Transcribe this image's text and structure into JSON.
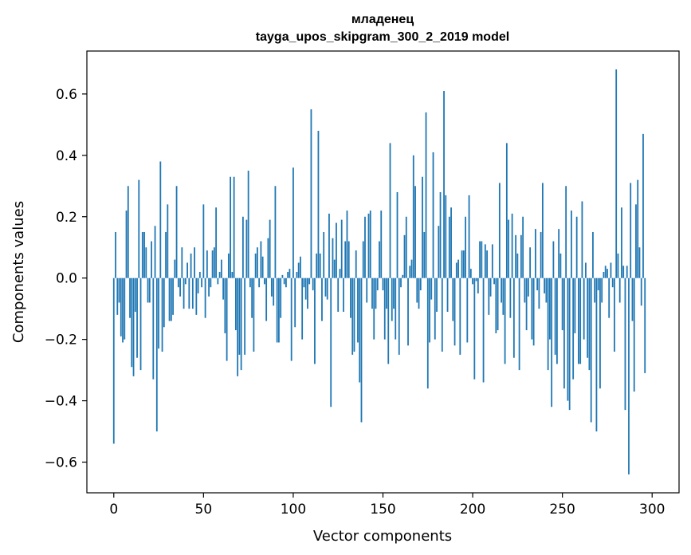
{
  "chart_data": {
    "type": "bar",
    "title": "младенец",
    "subtitle": "tayga_upos_skipgram_300_2_2019 model",
    "xlabel": "Vector components",
    "ylabel": "Components values",
    "xlim": [
      -15,
      315
    ],
    "ylim": [
      -0.7,
      0.74
    ],
    "xticks": [
      0,
      50,
      100,
      150,
      200,
      250,
      300
    ],
    "yticks": [
      -0.6,
      -0.4,
      -0.2,
      0.0,
      0.2,
      0.4,
      0.6
    ],
    "ytick_labels": [
      "−0.6",
      "−0.4",
      "−0.2",
      "0.0",
      "0.2",
      "0.4",
      "0.6"
    ],
    "xtick_labels": [
      "0",
      "50",
      "100",
      "150",
      "200",
      "250",
      "300"
    ],
    "bar_color": "#1f77b4",
    "values": [
      -0.54,
      0.15,
      -0.12,
      -0.08,
      -0.19,
      -0.21,
      -0.2,
      0.22,
      0.3,
      -0.13,
      -0.29,
      -0.32,
      -0.11,
      -0.26,
      0.32,
      -0.3,
      0.15,
      0.15,
      0.1,
      -0.08,
      -0.08,
      0.12,
      -0.33,
      0.17,
      -0.5,
      -0.23,
      0.38,
      -0.24,
      -0.16,
      0.15,
      0.24,
      -0.14,
      -0.14,
      -0.12,
      0.06,
      0.3,
      -0.03,
      -0.06,
      0.1,
      -0.1,
      -0.02,
      0.05,
      -0.1,
      0.08,
      -0.1,
      0.1,
      -0.12,
      -0.05,
      0.02,
      -0.03,
      0.24,
      -0.13,
      0.09,
      -0.06,
      -0.03,
      0.09,
      0.1,
      0.23,
      -0.02,
      0.02,
      0.06,
      -0.07,
      -0.18,
      -0.27,
      0.08,
      0.33,
      0.02,
      0.33,
      -0.17,
      -0.32,
      -0.25,
      -0.3,
      0.2,
      -0.25,
      0.19,
      0.35,
      -0.03,
      -0.13,
      -0.24,
      0.08,
      0.1,
      -0.03,
      0.12,
      0.07,
      -0.02,
      -0.14,
      0.13,
      0.19,
      -0.06,
      -0.09,
      0.3,
      -0.21,
      -0.21,
      -0.13,
      0.01,
      -0.02,
      -0.03,
      0.02,
      0.03,
      -0.27,
      0.36,
      -0.16,
      0.02,
      0.05,
      0.07,
      -0.2,
      -0.03,
      -0.07,
      -0.1,
      -0.02,
      0.55,
      -0.04,
      -0.28,
      0.08,
      0.48,
      0.08,
      -0.14,
      0.15,
      -0.06,
      -0.07,
      0.21,
      -0.42,
      0.13,
      0.06,
      0.18,
      -0.11,
      0.03,
      0.19,
      -0.11,
      0.12,
      0.22,
      0.12,
      -0.13,
      -0.25,
      -0.24,
      0.09,
      -0.21,
      -0.34,
      -0.47,
      0.12,
      0.2,
      -0.08,
      0.21,
      0.22,
      -0.1,
      -0.2,
      -0.1,
      -0.04,
      0.12,
      0.22,
      -0.04,
      -0.2,
      -0.1,
      -0.28,
      0.44,
      -0.14,
      -0.1,
      -0.2,
      0.28,
      -0.25,
      -0.03,
      0.01,
      0.14,
      0.2,
      -0.22,
      0.04,
      0.06,
      0.4,
      0.3,
      -0.08,
      -0.1,
      -0.04,
      0.33,
      0.15,
      0.54,
      -0.36,
      -0.21,
      -0.07,
      0.41,
      -0.2,
      -0.11,
      0.17,
      0.28,
      -0.24,
      0.61,
      0.27,
      -0.11,
      0.2,
      0.23,
      -0.14,
      -0.22,
      0.05,
      0.06,
      -0.25,
      0.09,
      0.09,
      0.2,
      -0.21,
      0.27,
      0.03,
      -0.02,
      -0.33,
      -0.01,
      -0.05,
      0.12,
      0.12,
      -0.34,
      0.11,
      0.09,
      -0.12,
      -0.06,
      0.11,
      -0.02,
      -0.18,
      -0.17,
      0.31,
      -0.08,
      -0.12,
      -0.28,
      0.44,
      0.19,
      -0.13,
      0.21,
      -0.26,
      0.14,
      0.08,
      -0.3,
      0.14,
      0.2,
      -0.08,
      -0.17,
      -0.06,
      0.1,
      -0.2,
      -0.22,
      0.16,
      -0.04,
      -0.1,
      0.15,
      0.31,
      -0.05,
      -0.08,
      -0.3,
      -0.2,
      -0.42,
      0.12,
      -0.25,
      -0.28,
      0.16,
      0.08,
      -0.17,
      -0.36,
      0.3,
      -0.4,
      -0.43,
      0.22,
      -0.33,
      -0.18,
      0.2,
      -0.28,
      -0.28,
      0.25,
      -0.2,
      0.05,
      -0.26,
      -0.3,
      -0.47,
      0.15,
      -0.08,
      -0.5,
      -0.04,
      -0.36,
      -0.08,
      0.02,
      0.04,
      0.03,
      -0.13,
      0.05,
      -0.03,
      -0.24,
      0.68,
      0.08,
      -0.08,
      0.23,
      0.04,
      -0.43,
      0.04,
      -0.64,
      0.31,
      -0.14,
      -0.37,
      0.24,
      0.32,
      0.1,
      -0.09,
      0.47,
      -0.31
    ]
  }
}
